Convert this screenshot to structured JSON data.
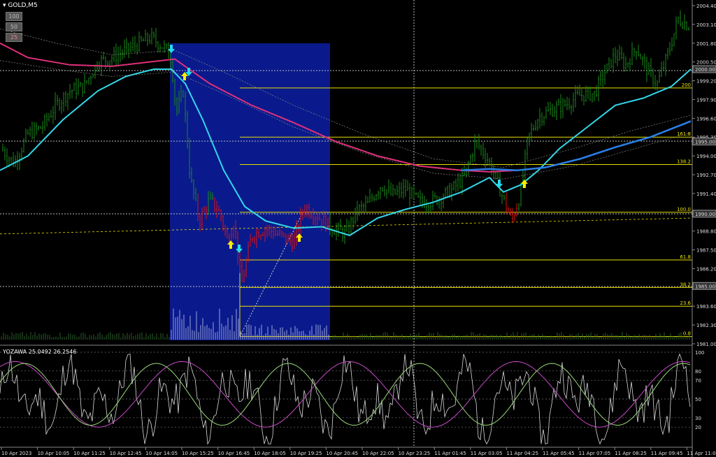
{
  "window": {
    "symbol_title": "GOLD,M5"
  },
  "timeframe_buttons": [
    "100",
    "50",
    "25"
  ],
  "oscillator": {
    "title": "YOZAWA 25.0492 26.2546",
    "levels": [
      "100",
      "80",
      "70",
      "50",
      "30",
      "20"
    ]
  },
  "colors": {
    "bull": "#1a8a1a",
    "bear": "#e01010",
    "ma_fast": "#33d6e8",
    "ma_slow": "#e0307a",
    "ma_blue": "#2a80e8",
    "fib": "#e8e000",
    "zone": "#0a1a8c"
  },
  "chart_data": {
    "type": "candlestick",
    "symbol": "GOLD",
    "timeframe": "M5",
    "price_axis_ticks": [
      "2004.40",
      "2003.10",
      "2001.80",
      "2000.50",
      "1999.20",
      "1997.90",
      "1996.60",
      "1995.30",
      "1994.00",
      "1992.70",
      "1991.40",
      "1990.10",
      "1988.80",
      "1987.50",
      "1986.20",
      "1984.90",
      "1983.60",
      "1982.30",
      "1981.00"
    ],
    "price_axis_marks": [
      "2000.00",
      "1995.00",
      "1990.00",
      "1985.00"
    ],
    "time_axis_labels": [
      "10 Apr 2023",
      "10 Apr 10:05",
      "10 Apr 11:25",
      "10 Apr 12:45",
      "10 Apr 14:05",
      "10 Apr 15:25",
      "10 Apr 16:45",
      "10 Apr 18:05",
      "10 Apr 19:25",
      "10 Apr 20:45",
      "10 Apr 22:05",
      "10 Apr 23:25",
      "11 Apr 01:45",
      "11 Apr 03:05",
      "11 Apr 04:25",
      "11 Apr 05:45",
      "11 Apr 07:05",
      "11 Apr 08:25",
      "11 Apr 09:45",
      "11 Apr 11:05"
    ],
    "fibonacci_levels": [
      {
        "label": "200",
        "price": 1998.7
      },
      {
        "label": "161.8",
        "price": 1995.3
      },
      {
        "label": "138.2",
        "price": 1993.4
      },
      {
        "label": "100.0",
        "price": 1990.1
      },
      {
        "label": "61.8",
        "price": 1986.8
      },
      {
        "label": "38.2",
        "price": 1984.9
      },
      {
        "label": "23.6",
        "price": 1983.6
      },
      {
        "label": "0.0",
        "price": 1981.5
      }
    ],
    "y_range": [
      1981.0,
      2004.4
    ],
    "oscillator_range": [
      0,
      100
    ]
  }
}
